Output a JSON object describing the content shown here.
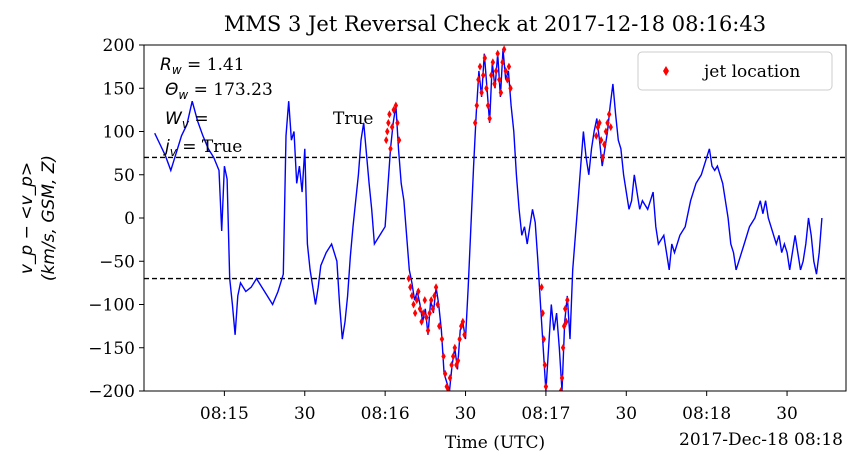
{
  "chart_data": {
    "type": "line",
    "title": "MMS 3 Jet Reversal Check at 2017-12-18 08:16:43",
    "xlabel": "Time (UTC)",
    "ylabel_line1": "v_p − <v_p>",
    "ylabel_line2": "(km/s, GSM, Z)",
    "offset_label": "2017-Dec-18 08:18",
    "xlim_seconds_after_0814": [
      0,
      131
    ],
    "ylim": [
      -200,
      200
    ],
    "x_ticks": [
      {
        "t": 15,
        "label": "08:15"
      },
      {
        "t": 30,
        "label": "30"
      },
      {
        "t": 45,
        "label": "08:16"
      },
      {
        "t": 60,
        "label": "30"
      },
      {
        "t": 75,
        "label": "08:17"
      },
      {
        "t": 90,
        "label": "30"
      },
      {
        "t": 105,
        "label": "08:18"
      },
      {
        "t": 120,
        "label": "30"
      }
    ],
    "y_ticks": [
      -200,
      -150,
      -100,
      -50,
      0,
      50,
      100,
      150,
      200
    ],
    "thresholds": [
      70,
      -70
    ],
    "legend": {
      "label": "jet location",
      "position": "top-right"
    },
    "annotations": {
      "R_w_label": "R",
      "R_w_sub": "w",
      "R_w_value": " = 1.41",
      "Theta_w_label": "Θ",
      "Theta_w_sub": "w",
      "Theta_w_value": " = 173.23",
      "W_v_label": "W",
      "W_v_sub": "v",
      "W_v_value": " = ",
      "W_v_result": "True",
      "j_v_label": "j",
      "j_v_sub": "v",
      "j_v_value": " = True"
    },
    "colors": {
      "line": "#0000ff",
      "jet": "#ff0000",
      "threshold": "#000000"
    },
    "series": [
      {
        "kind": "velocity",
        "points": [
          [
            2,
            98
          ],
          [
            3,
            85
          ],
          [
            4,
            72
          ],
          [
            5,
            55
          ],
          [
            6,
            75
          ],
          [
            7,
            95
          ],
          [
            8,
            108
          ],
          [
            9,
            135
          ],
          [
            10,
            112
          ],
          [
            11,
            95
          ],
          [
            12,
            80
          ],
          [
            13,
            70
          ],
          [
            14,
            55
          ],
          [
            14.5,
            -15
          ],
          [
            15,
            60
          ],
          [
            15.5,
            45
          ],
          [
            16,
            -70
          ],
          [
            16.5,
            -100
          ],
          [
            17,
            -135
          ],
          [
            17.5,
            -90
          ],
          [
            18,
            -75
          ],
          [
            19,
            -85
          ],
          [
            20,
            -80
          ],
          [
            21,
            -70
          ],
          [
            22,
            -80
          ],
          [
            23,
            -90
          ],
          [
            24,
            -100
          ],
          [
            25,
            -85
          ],
          [
            26,
            -65
          ],
          [
            26.5,
            95
          ],
          [
            27,
            135
          ],
          [
            27.5,
            90
          ],
          [
            28,
            100
          ],
          [
            28.5,
            40
          ],
          [
            29,
            60
          ],
          [
            29.5,
            30
          ],
          [
            30,
            80
          ],
          [
            30.5,
            -30
          ],
          [
            31,
            -60
          ],
          [
            31.5,
            -80
          ],
          [
            32,
            -100
          ],
          [
            32.5,
            -80
          ],
          [
            33,
            -55
          ],
          [
            34,
            -40
          ],
          [
            35,
            -30
          ],
          [
            36,
            -50
          ],
          [
            36.5,
            -100
          ],
          [
            37,
            -140
          ],
          [
            37.5,
            -120
          ],
          [
            38,
            -90
          ],
          [
            38.5,
            -45
          ],
          [
            39,
            -10
          ],
          [
            39.5,
            20
          ],
          [
            40,
            50
          ],
          [
            40.5,
            90
          ],
          [
            41,
            110
          ],
          [
            41.5,
            75
          ],
          [
            42,
            40
          ],
          [
            42.5,
            10
          ],
          [
            43,
            -30
          ],
          [
            44,
            -20
          ],
          [
            45,
            -10
          ],
          [
            45.5,
            35
          ],
          [
            46,
            80
          ],
          [
            46.5,
            110
          ],
          [
            47,
            130
          ],
          [
            47.5,
            80
          ],
          [
            48,
            40
          ],
          [
            48.5,
            20
          ],
          [
            49,
            -20
          ],
          [
            49.5,
            -60
          ],
          [
            50,
            -75
          ],
          [
            50.5,
            -95
          ],
          [
            51,
            -85
          ],
          [
            51.5,
            -100
          ],
          [
            52,
            -120
          ],
          [
            52.5,
            -105
          ],
          [
            53,
            -135
          ],
          [
            53.5,
            -95
          ],
          [
            54,
            -110
          ],
          [
            54.5,
            -80
          ],
          [
            55,
            -100
          ],
          [
            55.5,
            -130
          ],
          [
            56,
            -180
          ],
          [
            56.5,
            -190
          ],
          [
            57,
            -200
          ],
          [
            57.5,
            -170
          ],
          [
            58,
            -150
          ],
          [
            58.5,
            -175
          ],
          [
            59,
            -130
          ],
          [
            59.5,
            -120
          ],
          [
            60,
            -140
          ],
          [
            60.5,
            -80
          ],
          [
            61,
            -10
          ],
          [
            61.5,
            60
          ],
          [
            62,
            120
          ],
          [
            62.5,
            170
          ],
          [
            63,
            140
          ],
          [
            63.5,
            190
          ],
          [
            64,
            150
          ],
          [
            64.5,
            110
          ],
          [
            65,
            180
          ],
          [
            65.5,
            150
          ],
          [
            66,
            190
          ],
          [
            66.5,
            140
          ],
          [
            67,
            195
          ],
          [
            67.5,
            160
          ],
          [
            68,
            170
          ],
          [
            68.5,
            130
          ],
          [
            69,
            100
          ],
          [
            69.5,
            50
          ],
          [
            70,
            10
          ],
          [
            70.5,
            -20
          ],
          [
            71,
            -10
          ],
          [
            71.5,
            -30
          ],
          [
            72,
            -10
          ],
          [
            72.5,
            10
          ],
          [
            73,
            -5
          ],
          [
            73.5,
            -50
          ],
          [
            74,
            -100
          ],
          [
            74.5,
            -150
          ],
          [
            75,
            -200
          ],
          [
            75.5,
            -150
          ],
          [
            76,
            -100
          ],
          [
            76.5,
            -130
          ],
          [
            77,
            -110
          ],
          [
            77.5,
            -150
          ],
          [
            78,
            -200
          ],
          [
            78.5,
            -120
          ],
          [
            79,
            -90
          ],
          [
            79.5,
            -140
          ],
          [
            80,
            -60
          ],
          [
            80.5,
            -20
          ],
          [
            81,
            20
          ],
          [
            81.5,
            60
          ],
          [
            82,
            100
          ],
          [
            82.5,
            70
          ],
          [
            83,
            50
          ],
          [
            83.5,
            80
          ],
          [
            84,
            100
          ],
          [
            84.5,
            115
          ],
          [
            85,
            90
          ],
          [
            85.5,
            60
          ],
          [
            86,
            80
          ],
          [
            86.5,
            100
          ],
          [
            87,
            130
          ],
          [
            87.5,
            155
          ],
          [
            88,
            120
          ],
          [
            88.5,
            90
          ],
          [
            89,
            80
          ],
          [
            89.5,
            50
          ],
          [
            90,
            30
          ],
          [
            90.5,
            10
          ],
          [
            91,
            20
          ],
          [
            91.5,
            50
          ],
          [
            92,
            30
          ],
          [
            92.5,
            10
          ],
          [
            93,
            20
          ],
          [
            94,
            10
          ],
          [
            95,
            30
          ],
          [
            95.5,
            -10
          ],
          [
            96,
            -30
          ],
          [
            97,
            -20
          ],
          [
            97.5,
            -40
          ],
          [
            98,
            -60
          ],
          [
            98.5,
            -30
          ],
          [
            99,
            -40
          ],
          [
            100,
            -20
          ],
          [
            101,
            -10
          ],
          [
            102,
            20
          ],
          [
            103,
            40
          ],
          [
            104,
            50
          ],
          [
            105,
            70
          ],
          [
            105.5,
            80
          ],
          [
            106,
            60
          ],
          [
            106.5,
            55
          ],
          [
            107,
            60
          ],
          [
            108,
            40
          ],
          [
            108.5,
            20
          ],
          [
            109,
            0
          ],
          [
            109.5,
            -30
          ],
          [
            110,
            -40
          ],
          [
            110.5,
            -60
          ],
          [
            111,
            -50
          ],
          [
            112,
            -30
          ],
          [
            113,
            -10
          ],
          [
            114,
            0
          ],
          [
            115,
            20
          ],
          [
            115.5,
            5
          ],
          [
            116,
            20
          ],
          [
            116.5,
            0
          ],
          [
            117,
            -10
          ],
          [
            118,
            -30
          ],
          [
            118.5,
            -20
          ],
          [
            119,
            -40
          ],
          [
            119.5,
            -30
          ],
          [
            120,
            -40
          ],
          [
            120.5,
            -60
          ],
          [
            121,
            -40
          ],
          [
            121.5,
            -20
          ],
          [
            122,
            -40
          ],
          [
            122.5,
            -60
          ],
          [
            123,
            -50
          ],
          [
            123.5,
            -30
          ],
          [
            124,
            0
          ],
          [
            124.5,
            -20
          ],
          [
            125,
            -50
          ],
          [
            125.5,
            -65
          ],
          [
            126,
            -40
          ],
          [
            126.5,
            0
          ]
        ]
      },
      {
        "kind": "jet",
        "points": [
          [
            45.2,
            90
          ],
          [
            45.4,
            100
          ],
          [
            45.6,
            110
          ],
          [
            45.8,
            120
          ],
          [
            46,
            80
          ],
          [
            46.3,
            105
          ],
          [
            46.6,
            125
          ],
          [
            47,
            130
          ],
          [
            47.3,
            110
          ],
          [
            47.6,
            90
          ],
          [
            49.4,
            -70
          ],
          [
            49.7,
            -80
          ],
          [
            50,
            -90
          ],
          [
            50.3,
            -100
          ],
          [
            50.6,
            -110
          ],
          [
            50.9,
            -95
          ],
          [
            51.2,
            -85
          ],
          [
            51.5,
            -105
          ],
          [
            51.8,
            -120
          ],
          [
            52.1,
            -110
          ],
          [
            52.4,
            -95
          ],
          [
            52.7,
            -115
          ],
          [
            53,
            -130
          ],
          [
            53.3,
            -110
          ],
          [
            53.6,
            -95
          ],
          [
            53.9,
            -105
          ],
          [
            54.2,
            -90
          ],
          [
            54.5,
            -80
          ],
          [
            54.8,
            -100
          ],
          [
            55.1,
            -125
          ],
          [
            55.6,
            -140
          ],
          [
            55.9,
            -160
          ],
          [
            56.2,
            -180
          ],
          [
            56.5,
            -195
          ],
          [
            56.8,
            -200
          ],
          [
            57.1,
            -185
          ],
          [
            57.4,
            -170
          ],
          [
            57.7,
            -160
          ],
          [
            58,
            -150
          ],
          [
            58.3,
            -170
          ],
          [
            58.6,
            -165
          ],
          [
            58.9,
            -140
          ],
          [
            59.2,
            -125
          ],
          [
            59.5,
            -120
          ],
          [
            59.8,
            -135
          ],
          [
            61.8,
            110
          ],
          [
            62.1,
            130
          ],
          [
            62.4,
            160
          ],
          [
            62.7,
            175
          ],
          [
            63,
            145
          ],
          [
            63.3,
            165
          ],
          [
            63.6,
            185
          ],
          [
            63.9,
            150
          ],
          [
            64.2,
            130
          ],
          [
            64.5,
            115
          ],
          [
            64.8,
            165
          ],
          [
            65.1,
            180
          ],
          [
            65.4,
            155
          ],
          [
            65.7,
            170
          ],
          [
            66,
            190
          ],
          [
            66.3,
            160
          ],
          [
            66.6,
            145
          ],
          [
            66.9,
            180
          ],
          [
            67.2,
            195
          ],
          [
            67.5,
            170
          ],
          [
            67.8,
            160
          ],
          [
            68.1,
            175
          ],
          [
            68.4,
            150
          ],
          [
            74.2,
            -80
          ],
          [
            74.4,
            -110
          ],
          [
            74.6,
            -140
          ],
          [
            74.8,
            -170
          ],
          [
            75,
            -195
          ],
          [
            77.8,
            -200
          ],
          [
            78,
            -185
          ],
          [
            78.2,
            -150
          ],
          [
            78.4,
            -125
          ],
          [
            78.6,
            -105
          ],
          [
            78.8,
            -120
          ],
          [
            79,
            -95
          ],
          [
            84.4,
            95
          ],
          [
            84.7,
            105
          ],
          [
            85,
            110
          ],
          [
            85.3,
            90
          ],
          [
            85.6,
            70
          ],
          [
            85.9,
            85
          ],
          [
            86.2,
            100
          ],
          [
            86.5,
            110
          ],
          [
            86.8,
            120
          ],
          [
            87.1,
            105
          ]
        ]
      }
    ]
  }
}
